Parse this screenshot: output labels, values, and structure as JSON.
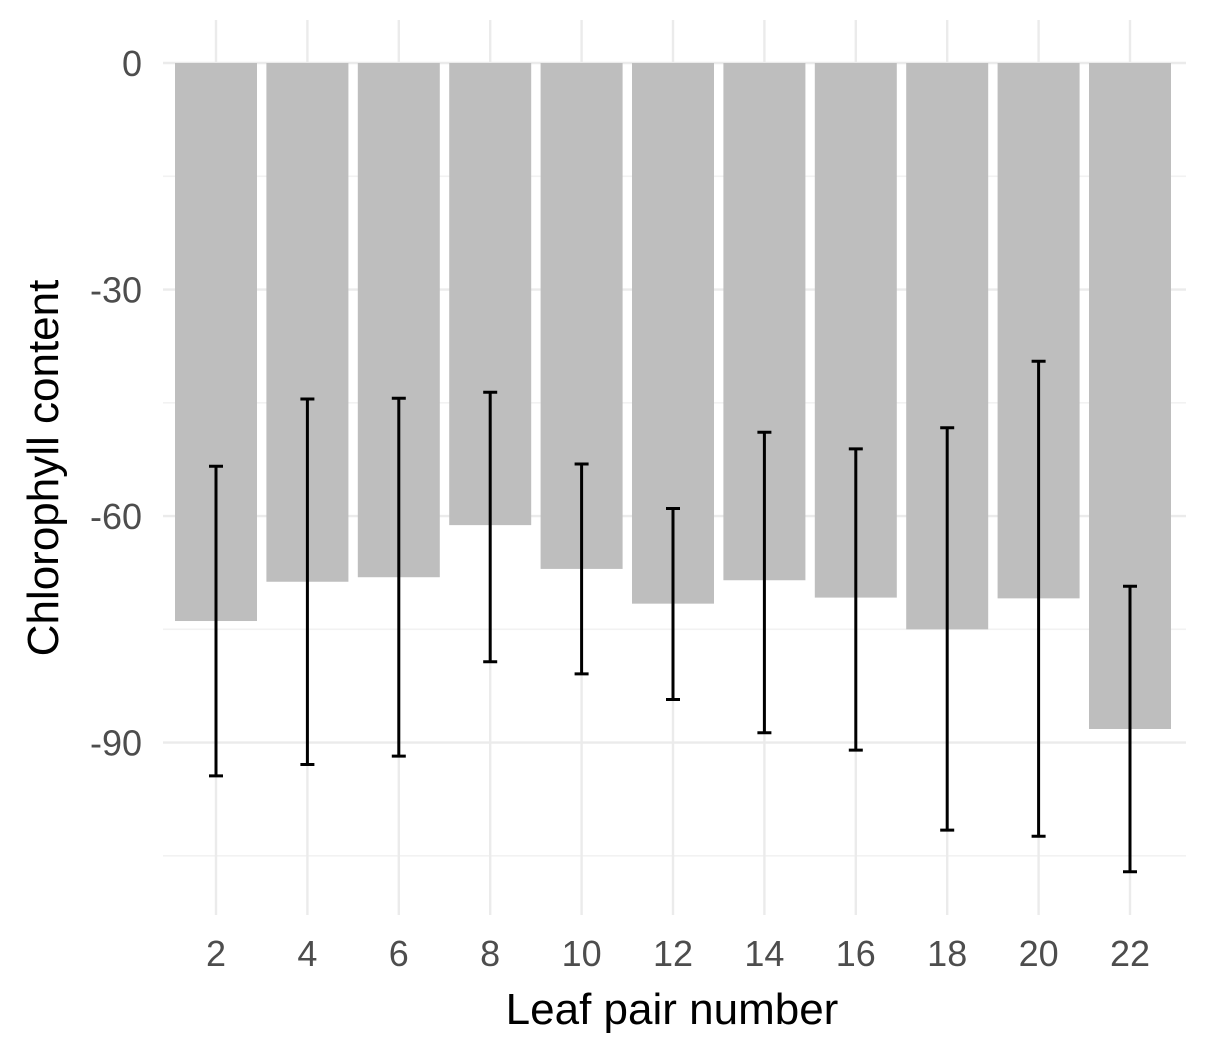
{
  "chart_data": {
    "type": "bar",
    "x": [
      2,
      4,
      6,
      8,
      10,
      12,
      14,
      16,
      18,
      20,
      22
    ],
    "values": [
      -73.9,
      -68.7,
      -68.1,
      -61.2,
      -67.0,
      -71.6,
      -68.5,
      -70.8,
      -75.0,
      -70.9,
      -88.2
    ],
    "error_bars": {
      "lower": [
        -94.4,
        -92.9,
        -91.8,
        -79.3,
        -80.9,
        -84.3,
        -88.7,
        -91.0,
        -101.6,
        -102.4,
        -107.1
      ],
      "upper": [
        -53.4,
        -44.5,
        -44.4,
        -43.6,
        -53.1,
        -59.0,
        -48.9,
        -51.1,
        -48.3,
        -39.5,
        -69.3
      ]
    },
    "xlabel": "Leaf pair number",
    "ylabel": "Chlorophyll content",
    "x_ticks": [
      2,
      4,
      6,
      8,
      10,
      12,
      14,
      16,
      18,
      20,
      22
    ],
    "y_ticks": [
      0,
      -30,
      -60,
      -90
    ],
    "ylim": [
      -112,
      0
    ],
    "grid": true,
    "colors": {
      "bar": "#bebebe",
      "error_bar": "#000000",
      "grid": "#ebebeb",
      "tick_text": "#4d4d4d"
    }
  }
}
